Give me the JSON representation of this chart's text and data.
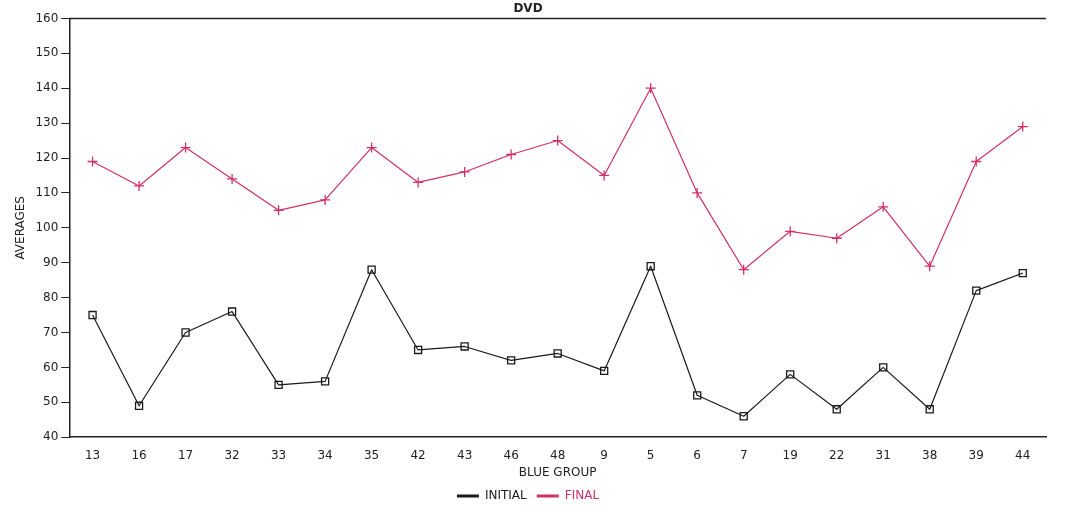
{
  "chart_data": {
    "type": "line",
    "title": "DVD",
    "xlabel": "BLUE GROUP",
    "ylabel": "AVERAGES",
    "categories": [
      "13",
      "16",
      "17",
      "32",
      "33",
      "34",
      "35",
      "42",
      "43",
      "46",
      "48",
      "9",
      "5",
      "6",
      "7",
      "19",
      "22",
      "31",
      "38",
      "39",
      "44"
    ],
    "series": [
      {
        "name": "INITIAL",
        "color": "#1a1a1a",
        "marker": "square",
        "values": [
          75,
          49,
          70,
          76,
          55,
          56,
          88,
          65,
          66,
          62,
          64,
          59,
          89,
          52,
          46,
          58,
          48,
          60,
          48,
          82,
          87
        ]
      },
      {
        "name": "FINAL",
        "color": "#d0306a",
        "marker": "cross",
        "values": [
          119,
          112,
          123,
          114,
          105,
          108,
          123,
          113,
          116,
          121,
          125,
          115,
          140,
          110,
          88,
          99,
          97,
          106,
          89,
          119,
          129
        ]
      }
    ],
    "ylim": [
      40,
      160
    ],
    "yticks": [
      40,
      50,
      60,
      70,
      80,
      90,
      100,
      110,
      120,
      130,
      140,
      150,
      160
    ],
    "grid": false,
    "legend": "bottom",
    "line_style": "solid"
  }
}
